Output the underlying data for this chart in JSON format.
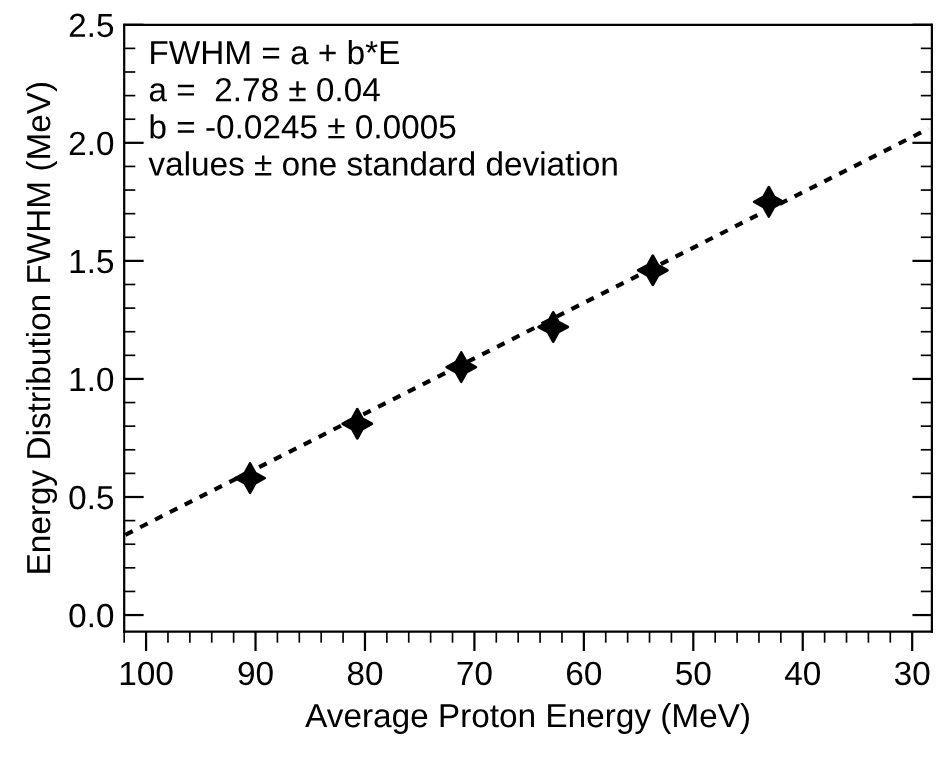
{
  "chart_data": {
    "type": "scatter",
    "xlabel": "Average Proton Energy (MeV)",
    "ylabel": "Energy Distribution FWHM (MeV)",
    "xlim": [
      102,
      28.2
    ],
    "ylim": [
      -0.07,
      2.5
    ],
    "xticks": [
      100,
      90,
      80,
      70,
      60,
      50,
      40,
      30
    ],
    "yticks": [
      {
        "value": 0,
        "label": "0.0"
      },
      {
        "value": 0.5,
        "label": "0.5"
      },
      {
        "value": 1,
        "label": "1.0"
      },
      {
        "value": 1.5,
        "label": "1.5"
      },
      {
        "value": 2,
        "label": "2.0"
      },
      {
        "value": 2.5,
        "label": "2.5"
      }
    ],
    "grid": false,
    "legend": false,
    "series": [
      {
        "color": "#000000",
        "marker": "star",
        "x": [
          90.5,
          80.7,
          71.2,
          62.8,
          53.7,
          43.1
        ],
        "values": [
          0.58,
          0.81,
          1.05,
          1.22,
          1.46,
          1.75
        ]
      },
      {
        "type": "line",
        "color": "#000000",
        "marker": "none",
        "line_style": "dotted",
        "x": [
          101.9,
          28.5
        ],
        "values": [
          0.34,
          2.06
        ]
      }
    ],
    "annotations": [
      "FWHM = a + b*E\na =  2.78 ± 0.04\nb = -0.0245 ± 0.0005\nvalues ± one standard deviation"
    ]
  }
}
